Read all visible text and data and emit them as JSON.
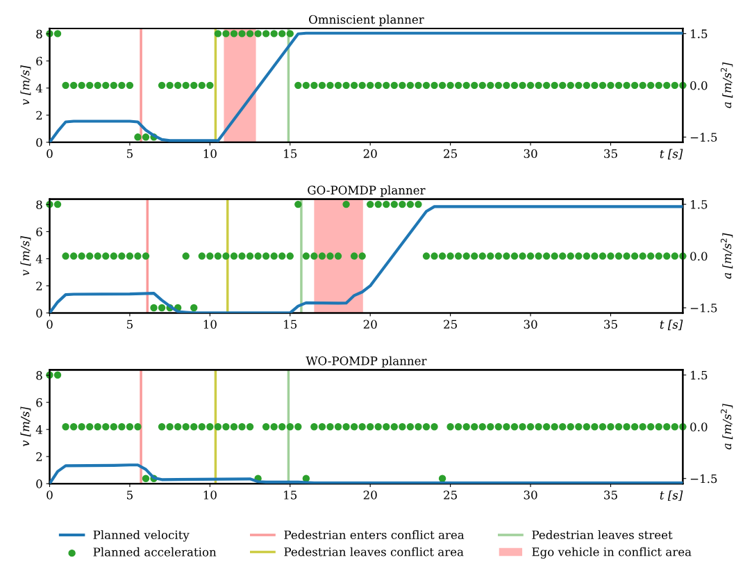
{
  "chart_data": [
    {
      "type": "line",
      "title": "Omniscient planner",
      "xlabel": "t [s]",
      "ylabel": "v [m/s]",
      "y2label": "a [m/s$^{2}$]",
      "xlim": [
        0,
        39.5
      ],
      "xticks": [
        0,
        5,
        10,
        15,
        20,
        25,
        30,
        35
      ],
      "ylim": [
        0,
        8.4
      ],
      "yticks": [
        0,
        2,
        4,
        6,
        8
      ],
      "y2lim": [
        -1.65,
        1.65
      ],
      "y2ticks": [
        {
          "value": -1.5,
          "label": "−1.5"
        },
        {
          "value": 0,
          "label": "0.0"
        },
        {
          "value": 1.5,
          "label": "1.5"
        }
      ],
      "series": [
        {
          "color": "#1f77b4",
          "marker": "none",
          "x": [
            0,
            0.5,
            1,
            1.5,
            5,
            5.5,
            6,
            6.5,
            7,
            7.5,
            10.4,
            10.5,
            15.5,
            16,
            39.5
          ],
          "values": [
            0,
            0.8,
            1.5,
            1.55,
            1.55,
            1.5,
            0.9,
            0.5,
            0.2,
            0.12,
            0.12,
            0.1,
            8.0,
            8.05,
            8.05
          ]
        },
        {
          "type": "scatter",
          "axis": "y2",
          "color": "#2ca02c",
          "marker": "circle",
          "x": [
            0,
            0.5,
            1,
            1.5,
            2,
            2.5,
            3,
            3.5,
            4,
            4.5,
            5,
            5.5,
            6,
            6.5,
            7,
            7.5,
            8,
            8.5,
            9,
            9.5,
            10,
            10.5,
            11,
            11.5,
            12,
            12.5,
            13,
            13.5,
            14,
            14.5,
            15,
            15.5,
            16,
            16.5,
            17,
            17.5,
            18,
            18.5,
            19,
            19.5,
            20,
            20.5,
            21,
            21.5,
            22,
            22.5,
            23,
            23.5,
            24,
            24.5,
            25,
            25.5,
            26,
            26.5,
            27,
            27.5,
            28,
            28.5,
            29,
            29.5,
            30,
            30.5,
            31,
            31.5,
            32,
            32.5,
            33,
            33.5,
            34,
            34.5,
            35,
            35.5,
            36,
            36.5,
            37,
            37.5,
            38,
            38.5,
            39,
            39.5
          ],
          "values": [
            1.5,
            1.5,
            0,
            0,
            0,
            0,
            0,
            0,
            0,
            0,
            0,
            -1.5,
            -1.5,
            -1.5,
            0,
            0,
            0,
            0,
            0,
            0,
            0,
            1.5,
            1.5,
            1.5,
            1.5,
            1.5,
            1.5,
            1.5,
            1.5,
            1.5,
            1.5,
            0,
            0,
            0,
            0,
            0,
            0,
            0,
            0,
            0,
            0,
            0,
            0,
            0,
            0,
            0,
            0,
            0,
            0,
            0,
            0,
            0,
            0,
            0,
            0,
            0,
            0,
            0,
            0,
            0,
            0,
            0,
            0,
            0,
            0,
            0,
            0,
            0,
            0,
            0,
            0,
            0,
            0,
            0,
            0,
            0,
            0,
            0,
            0,
            0
          ]
        }
      ],
      "ref_lines": [
        {
          "axis": "x",
          "value": 5.7,
          "color": "#fa9a9a"
        },
        {
          "axis": "x",
          "value": 10.35,
          "color": "#cccc44"
        },
        {
          "axis": "x",
          "value": 14.9,
          "color": "#a0d09a"
        }
      ],
      "bands": [
        {
          "axis": "x",
          "from": 10.87,
          "to": 12.87,
          "color": "#ffb4b4"
        }
      ]
    },
    {
      "type": "line",
      "title": "GO-POMDP planner",
      "xlabel": "t [s]",
      "ylabel": "v [m/s]",
      "y2label": "a [m/s$^{2}$]",
      "xlim": [
        0,
        39.5
      ],
      "xticks": [
        0,
        5,
        10,
        15,
        20,
        25,
        30,
        35
      ],
      "ylim": [
        0,
        8.4
      ],
      "yticks": [
        0,
        2,
        4,
        6,
        8
      ],
      "y2lim": [
        -1.65,
        1.65
      ],
      "y2ticks": [
        {
          "value": -1.5,
          "label": "−1.5"
        },
        {
          "value": 0,
          "label": "0.0"
        },
        {
          "value": 1.5,
          "label": "1.5"
        }
      ],
      "legend": "bottom",
      "series": [
        {
          "name": "Planned velocity",
          "color": "#1f77b4",
          "marker": "none",
          "x": [
            0,
            0.5,
            1,
            1.5,
            5,
            6.5,
            7,
            7.5,
            8,
            8.5,
            9,
            15,
            15.5,
            16,
            18,
            18.5,
            19,
            19.5,
            20,
            23.5,
            24,
            39.5
          ],
          "values": [
            0,
            0.8,
            1.35,
            1.38,
            1.4,
            1.45,
            0.94,
            0.5,
            0.1,
            0.05,
            0,
            0,
            0.5,
            0.75,
            0.72,
            0.73,
            1.29,
            1.55,
            2.0,
            7.5,
            7.85,
            7.85
          ]
        },
        {
          "name": "Planned acceleration",
          "type": "scatter",
          "axis": "y2",
          "color": "#2ca02c",
          "marker": "circle",
          "x": [
            0,
            0.5,
            1,
            1.5,
            2,
            2.5,
            3,
            3.5,
            4,
            4.5,
            5,
            5.5,
            6,
            6.5,
            7,
            7.5,
            8,
            8.5,
            9,
            9.5,
            10,
            10.5,
            11,
            11.5,
            12,
            12.5,
            13,
            13.5,
            14,
            14.5,
            15,
            15.5,
            16,
            16.5,
            17,
            17.5,
            18,
            18.5,
            19,
            19.5,
            20,
            20.5,
            21,
            21.5,
            22,
            22.5,
            23,
            23.5,
            24,
            24.5,
            25,
            25.5,
            26,
            26.5,
            27,
            27.5,
            28,
            28.5,
            29,
            29.5,
            30,
            30.5,
            31,
            31.5,
            32,
            32.5,
            33,
            33.5,
            34,
            34.5,
            35,
            35.5,
            36,
            36.5,
            37,
            37.5,
            38,
            38.5,
            39,
            39.5
          ],
          "values": [
            1.5,
            1.5,
            0,
            0,
            0,
            0,
            0,
            0,
            0,
            0,
            0,
            0,
            0,
            -1.5,
            -1.5,
            -1.5,
            -1.5,
            0,
            -1.5,
            0,
            0,
            0,
            0,
            0,
            0,
            0,
            0,
            0,
            0,
            0,
            0,
            1.5,
            0,
            0,
            0,
            0,
            0,
            1.5,
            0,
            0,
            1.5,
            1.5,
            1.5,
            1.5,
            1.5,
            1.5,
            1.5,
            0,
            0,
            0,
            0,
            0,
            0,
            0,
            0,
            0,
            0,
            0,
            0,
            0,
            0,
            0,
            0,
            0,
            0,
            0,
            0,
            0,
            0,
            0,
            0,
            0,
            0,
            0,
            0,
            0,
            0,
            0,
            0,
            0
          ]
        }
      ],
      "ref_lines": [
        {
          "axis": "x",
          "value": 6.1,
          "label": "Pedestrian enters conflict area",
          "color": "#fa9a9a"
        },
        {
          "axis": "x",
          "value": 11.1,
          "label": "Pedestrian leaves conflict area",
          "color": "#cccc44"
        },
        {
          "axis": "x",
          "value": 15.7,
          "label": "Pedestrian leaves street",
          "color": "#a0d09a"
        }
      ],
      "bands": [
        {
          "axis": "x",
          "from": 16.5,
          "to": 19.55,
          "label": "Ego vehicle in conflict area",
          "color": "#ffb4b4"
        }
      ]
    },
    {
      "type": "line",
      "title": "WO-POMDP planner",
      "xlabel": "t [s]",
      "ylabel": "v [m/s]",
      "y2label": "a [m/s$^{2}$]",
      "xlim": [
        0,
        39.5
      ],
      "xticks": [
        0,
        5,
        10,
        15,
        20,
        25,
        30,
        35
      ],
      "ylim": [
        0,
        8.4
      ],
      "yticks": [
        0,
        2,
        4,
        6,
        8
      ],
      "y2lim": [
        -1.65,
        1.65
      ],
      "y2ticks": [
        {
          "value": -1.5,
          "label": "−1.5"
        },
        {
          "value": 0,
          "label": "0.0"
        },
        {
          "value": 1.5,
          "label": "1.5"
        }
      ],
      "series": [
        {
          "color": "#1f77b4",
          "marker": "none",
          "x": [
            0,
            0.5,
            1,
            4,
            5,
            5.5,
            6,
            6.5,
            7,
            12.5,
            13,
            13.5,
            15.5,
            16.5,
            39.5
          ],
          "values": [
            0,
            0.9,
            1.32,
            1.35,
            1.38,
            1.38,
            1.05,
            0.43,
            0.3,
            0.35,
            0.15,
            0.12,
            0.12,
            0.05,
            0.05
          ]
        },
        {
          "type": "scatter",
          "axis": "y2",
          "color": "#2ca02c",
          "marker": "circle",
          "x": [
            0,
            0.5,
            1,
            1.5,
            2,
            2.5,
            3,
            3.5,
            4,
            4.5,
            5,
            5.5,
            6,
            6.5,
            7,
            7.5,
            8,
            8.5,
            9,
            9.5,
            10,
            10.5,
            11,
            11.5,
            12,
            12.5,
            13,
            13.5,
            14,
            14.5,
            15,
            15.5,
            16,
            16.5,
            17,
            17.5,
            18,
            18.5,
            19,
            19.5,
            20,
            20.5,
            21,
            21.5,
            22,
            22.5,
            23,
            23.5,
            24,
            24.5,
            25,
            25.5,
            26,
            26.5,
            27,
            27.5,
            28,
            28.5,
            29,
            29.5,
            30,
            30.5,
            31,
            31.5,
            32,
            32.5,
            33,
            33.5,
            34,
            34.5,
            35,
            35.5,
            36,
            36.5,
            37,
            37.5,
            38,
            38.5,
            39,
            39.5
          ],
          "values": [
            1.5,
            1.5,
            0,
            0,
            0,
            0,
            0,
            0,
            0,
            0,
            0,
            0,
            -1.5,
            -1.5,
            0,
            0,
            0,
            0,
            0,
            0,
            0,
            0,
            0,
            0,
            0,
            0,
            -1.5,
            0,
            0,
            0,
            0,
            0,
            -1.5,
            0,
            0,
            0,
            0,
            0,
            0,
            0,
            0,
            0,
            0,
            0,
            0,
            0,
            0,
            0,
            0,
            -1.5,
            0,
            0,
            0,
            0,
            0,
            0,
            0,
            0,
            0,
            0,
            0,
            0,
            0,
            0,
            0,
            0,
            0,
            0,
            0,
            0,
            0,
            0,
            0,
            0,
            0,
            0,
            0,
            0,
            0,
            0
          ]
        }
      ],
      "ref_lines": [
        {
          "axis": "x",
          "value": 5.7,
          "color": "#fa9a9a"
        },
        {
          "axis": "x",
          "value": 10.35,
          "color": "#cccc44"
        },
        {
          "axis": "x",
          "value": 14.9,
          "color": "#a0d09a"
        }
      ]
    }
  ]
}
